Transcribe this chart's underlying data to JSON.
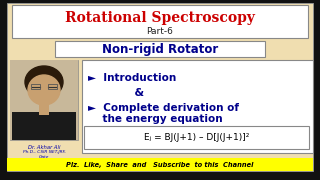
{
  "bg_color": "#f0deb0",
  "outer_bg": "#111111",
  "title_text": "Rotational Spectroscopy",
  "subtitle_text": "Part-6",
  "title_color": "#cc0000",
  "subtitle_color": "#222222",
  "title_box_bg": "#ffffff",
  "nonrigid_text": "Non-rigid Rotator",
  "nonrigid_color": "#00008b",
  "nonrigid_box_bg": "#ffffff",
  "bullet1": "►  Introduction",
  "bullet_amp": "            &",
  "bullet2": "►  Complete derivation of",
  "bullet2b": "    the energy equation",
  "bullet_color": "#00008b",
  "eq_text": "Eⱼ = BJ(J+1) – D[J(J+1)]²",
  "eq_color": "#000000",
  "content_box_bg": "#ffffff",
  "photo_bg": "#d0c0a0",
  "hair_color": "#2a1a0a",
  "skin_color": "#c8a070",
  "shirt_color": "#1a1a1a",
  "name_text": "Dr. Akhar Ali",
  "cred_text": "Ph.D., CSIR NET-JRF,",
  "gate_text": "Gate",
  "name_color": "#0000aa",
  "bottom_text": "Plz.  Like,  Share  and   Subscribe  to this  Channel",
  "bottom_color": "#000000",
  "bottom_bg": "#ffff00"
}
